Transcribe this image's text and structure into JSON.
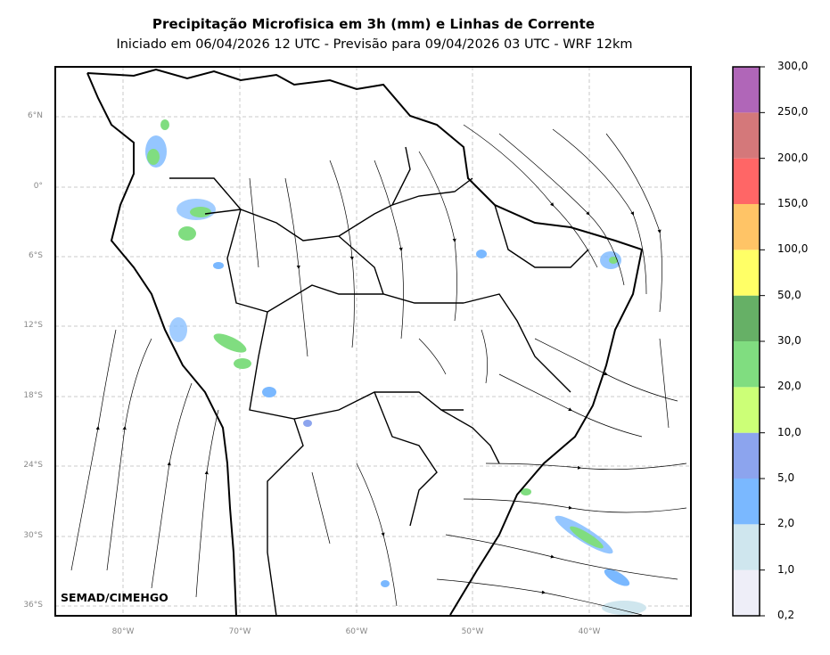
{
  "header": {
    "title": "Precipitação Microfisica em 3h (mm) e Linhas de Corrente",
    "subtitle": "Iniciado em 06/04/2026 12 UTC - Previsão para 09/04/2026 03 UTC - WRF 12km"
  },
  "map": {
    "credit": "SEMAD/CIMEHGO",
    "lat_labels": [
      "6°N",
      "0°",
      "6°S",
      "12°S",
      "18°S",
      "24°S",
      "30°S",
      "36°S"
    ],
    "lon_labels": [
      "80°W",
      "70°W",
      "60°W",
      "50°W",
      "40°W"
    ]
  },
  "colorbar": {
    "labels": [
      "0,2",
      "1,0",
      "2,0",
      "5,0",
      "10,0",
      "20,0",
      "30,0",
      "50,0",
      "100,0",
      "150,0",
      "200,0",
      "250,0",
      "300,0"
    ],
    "colors": [
      "#eeeef8",
      "#cfe6ee",
      "#7ab8ff",
      "#8ca4ee",
      "#ccff77",
      "#80dd80",
      "#66b066",
      "#ffff66",
      "#ffc466",
      "#ff6666",
      "#d4787a",
      "#b066b8"
    ]
  }
}
